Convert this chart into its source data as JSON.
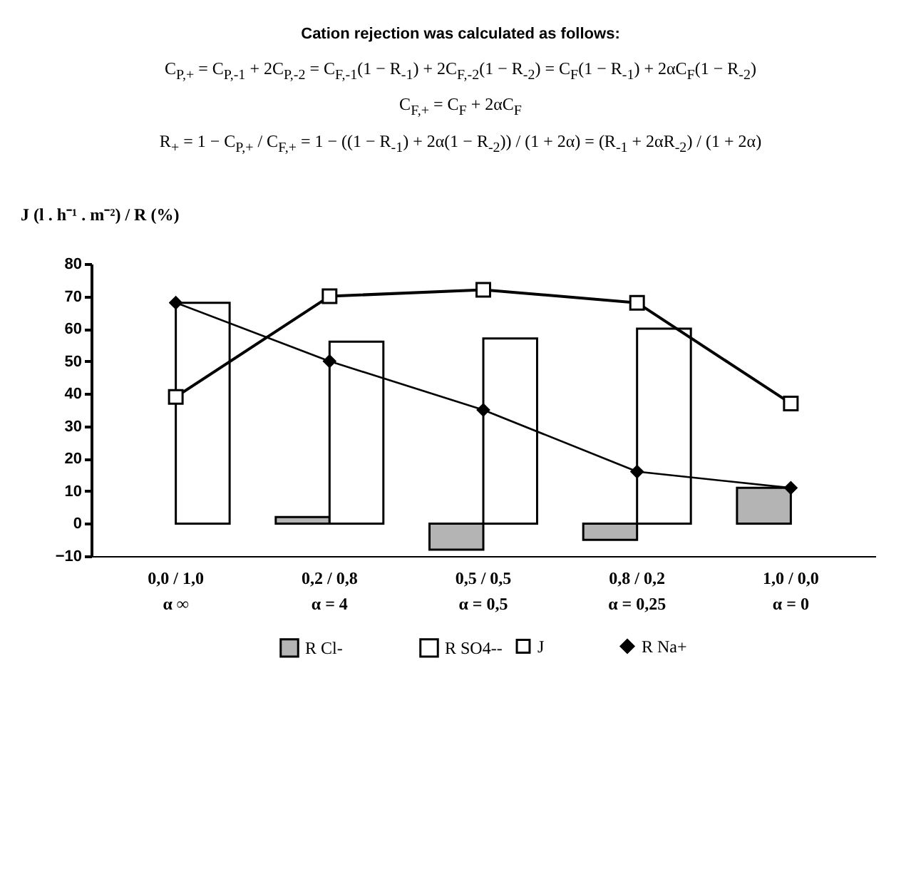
{
  "chart_data": {
    "type": "bar",
    "title": "Cation rejection was calculated as follows:",
    "annotations": [
      "C$_{P,+}$ = C$_{P,-1}$ + 2C$_{P,-2}$ = C$_{F,-1}$(1 − R$_{-1}$) + 2C$_{F,-2}$(1 − R$_{-2}$) = C$_{F}$(1 − R$_{-1}$) + 2αC$_{F}$(1 − R$_{-2}$)",
      "C$_{F,+}$ = C$_{F}$ + 2αC$_{F}$",
      "R$_{+}$ = 1 − C$_{P,+}$ / C$_{F,+}$ = 1 − ((1 − R$_{-1}$) + 2α(1 − R$_{-2}$)) / (1 + 2α) = (R$_{-1}$ + 2αR$_{-2}$) / (1 + 2α)"
    ],
    "ylabel": "J (l . h⁻¹ . m⁻²) / R (%)",
    "categories": [
      "0,0 / 1,0\nα ∞",
      "0,2 / 0,8\nα = 4",
      "0,5 / 0,5\nα = 0,5",
      "0,8 / 0,2\nα = 0,25",
      "1,0 / 0,0\nα = 0"
    ],
    "series": [
      {
        "name": "R Cl-",
        "color": "#b4b4b4",
        "values": [
          null,
          2,
          -8,
          -5,
          11
        ]
      },
      {
        "name": "R SO4--",
        "color": "#ffffff",
        "values": [
          68,
          56,
          57,
          60,
          null
        ]
      },
      {
        "name": "J",
        "type": "line",
        "color": "#000000",
        "marker": "square",
        "values": [
          39,
          70,
          72,
          68,
          37
        ]
      },
      {
        "name": "R Na+",
        "type": "line",
        "color": "#000000",
        "marker": "diamond",
        "values": [
          68,
          50,
          35,
          16,
          11
        ]
      }
    ],
    "ylim": [
      -10,
      80
    ],
    "yticks": [
      -10,
      0,
      10,
      20,
      30,
      40,
      50,
      60,
      70,
      80
    ],
    "grid": false,
    "legend": "bottom"
  }
}
